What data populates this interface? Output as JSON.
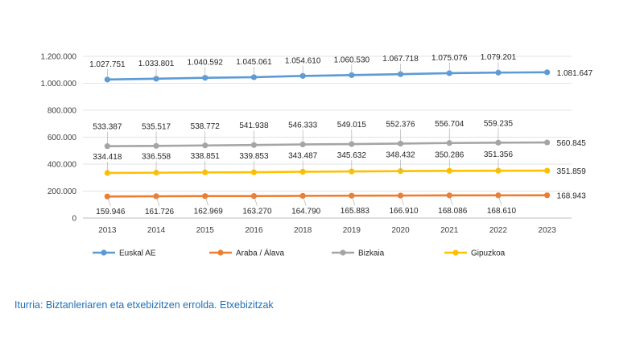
{
  "chart_data": {
    "type": "line",
    "categories": [
      "2013",
      "2014",
      "2015",
      "2016",
      "2018",
      "2019",
      "2020",
      "2021",
      "2022",
      "2023"
    ],
    "ylim": [
      0,
      1200000
    ],
    "yticks": [
      0,
      200000,
      400000,
      600000,
      800000,
      1000000,
      1200000
    ],
    "ytick_labels": [
      "0",
      "200.000",
      "400.000",
      "600.000",
      "800.000",
      "1.000.000",
      "1.200.000"
    ],
    "grid": true,
    "legend_position": "bottom",
    "series": [
      {
        "name": "Euskal AE",
        "color": "#5b9bd5",
        "values": [
          1027751,
          1033801,
          1040592,
          1045061,
          1054610,
          1060530,
          1067718,
          1075076,
          1079201,
          1081647
        ],
        "labels": [
          "1.027.751",
          "1.033.801",
          "1.040.592",
          "1.045.061",
          "1.054.610",
          "1.060.530",
          "1.067.718",
          "1.075.076",
          "1.079.201",
          "1.081.647"
        ]
      },
      {
        "name": "Araba / Álava",
        "color": "#ed7d31",
        "values": [
          159946,
          161726,
          162969,
          163270,
          164790,
          165883,
          166910,
          168086,
          168610,
          168943
        ],
        "labels": [
          "159.946",
          "161.726",
          "162.969",
          "163.270",
          "164.790",
          "165.883",
          "166.910",
          "168.086",
          "168.610",
          "168.943"
        ]
      },
      {
        "name": "Bizkaia",
        "color": "#a5a5a5",
        "values": [
          533387,
          535517,
          538772,
          541938,
          546333,
          549015,
          552376,
          556704,
          559235,
          560845
        ],
        "labels": [
          "533.387",
          "535.517",
          "538.772",
          "541.938",
          "546.333",
          "549.015",
          "552.376",
          "556.704",
          "559.235",
          "560.845"
        ]
      },
      {
        "name": "Gipuzkoa",
        "color": "#ffc000",
        "values": [
          334418,
          336558,
          338851,
          339853,
          343487,
          345632,
          348432,
          350286,
          351356,
          351859
        ],
        "labels": [
          "334.418",
          "336.558",
          "338.851",
          "339.853",
          "343.487",
          "345.632",
          "348.432",
          "350.286",
          "351.356",
          "351.859"
        ]
      }
    ]
  },
  "source_text": "Iturria: Biztanleriaren eta etxebizitzen errolda. Etxebizitzak"
}
